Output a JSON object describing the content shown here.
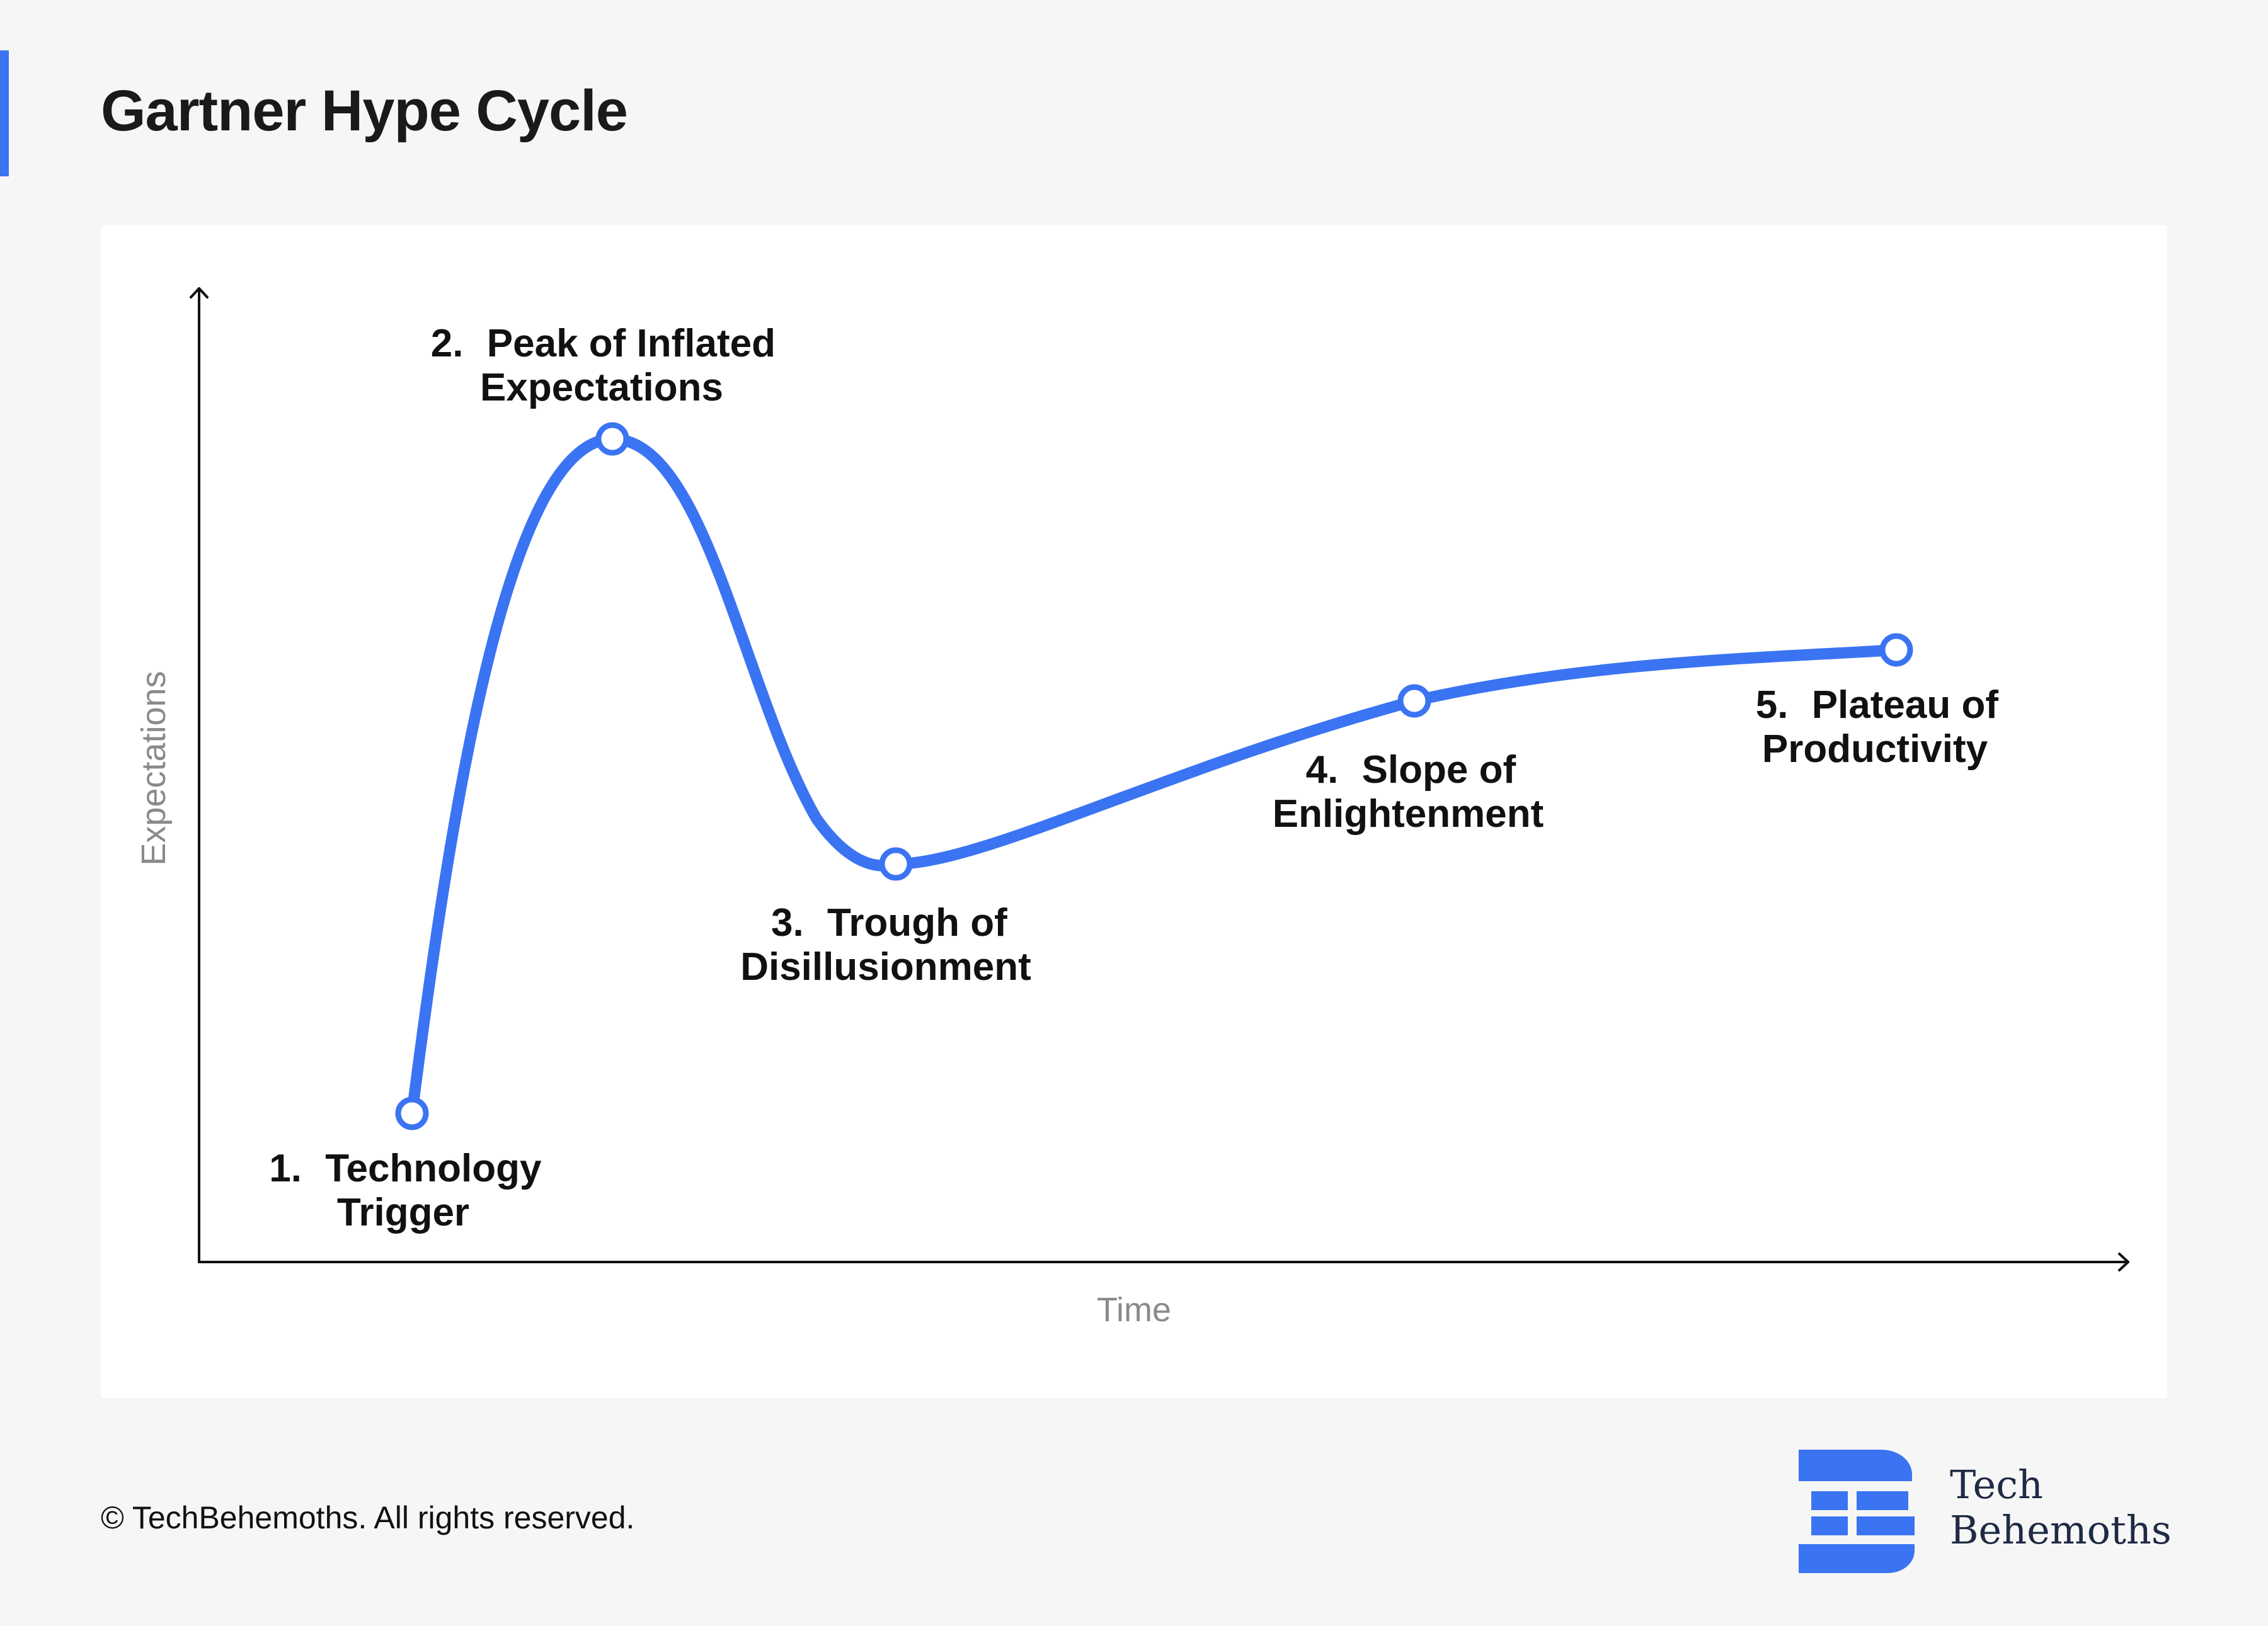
{
  "page": {
    "title": "Gartner Hype Cycle",
    "footer": "© TechBehemoths. All rights reserved.",
    "logo": {
      "line1": "Tech",
      "line2": "Behemoths",
      "icon_name": "techbehemoths-logo-icon"
    },
    "colors": {
      "accent": "#3b74f2",
      "background": "#f6f6f6",
      "panel": "#ffffff",
      "axis_label": "#8a8a8a",
      "logo_text": "#1f2a44"
    }
  },
  "diagram": {
    "axes": {
      "y_label": "Expectations",
      "x_label": "Time"
    },
    "phases": [
      {
        "number": "1.",
        "line1": "Technology",
        "line2": "Trigger"
      },
      {
        "number": "2.",
        "line1": "Peak of Inflated",
        "line2": "Expectations"
      },
      {
        "number": "3.",
        "line1": "Trough of",
        "line2": "Disillusionment"
      },
      {
        "number": "4.",
        "line1": "Slope of",
        "line2": "Enlightenment"
      },
      {
        "number": "5.",
        "line1": "Plateau of",
        "line2": "Productivity"
      }
    ]
  }
}
